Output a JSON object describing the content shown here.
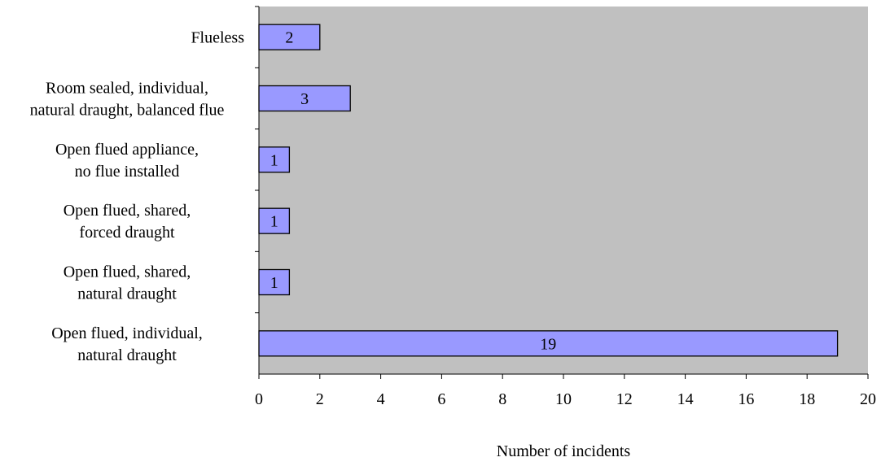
{
  "chart_data": {
    "type": "bar",
    "orientation": "horizontal",
    "categories": [
      [
        "Flueless"
      ],
      [
        "Room sealed, individual,",
        "natural draught, balanced flue"
      ],
      [
        "Open flued appliance,",
        "no flue installed"
      ],
      [
        "Open flued, shared,",
        "forced draught"
      ],
      [
        "Open flued, shared,",
        "natural draught"
      ],
      [
        "Open flued, individual,",
        "natural draught"
      ]
    ],
    "values": [
      2,
      3,
      1,
      1,
      1,
      19
    ],
    "data_labels": [
      "2",
      "3",
      "1",
      "1",
      "1",
      "19"
    ],
    "xlabel": "Number of incidents",
    "ylabel": "",
    "xlim": [
      0,
      20
    ],
    "x_ticks": [
      0,
      2,
      4,
      6,
      8,
      10,
      12,
      14,
      16,
      18,
      20
    ],
    "x_tick_labels": [
      "0",
      "2",
      "4",
      "6",
      "8",
      "10",
      "12",
      "14",
      "16",
      "18",
      "20"
    ],
    "grid": false,
    "legend": "none",
    "colors": {
      "plot_background": "#c0c0c0",
      "bar_fill": "#9999ff",
      "bar_stroke": "#000000",
      "axis": "#000000"
    }
  }
}
